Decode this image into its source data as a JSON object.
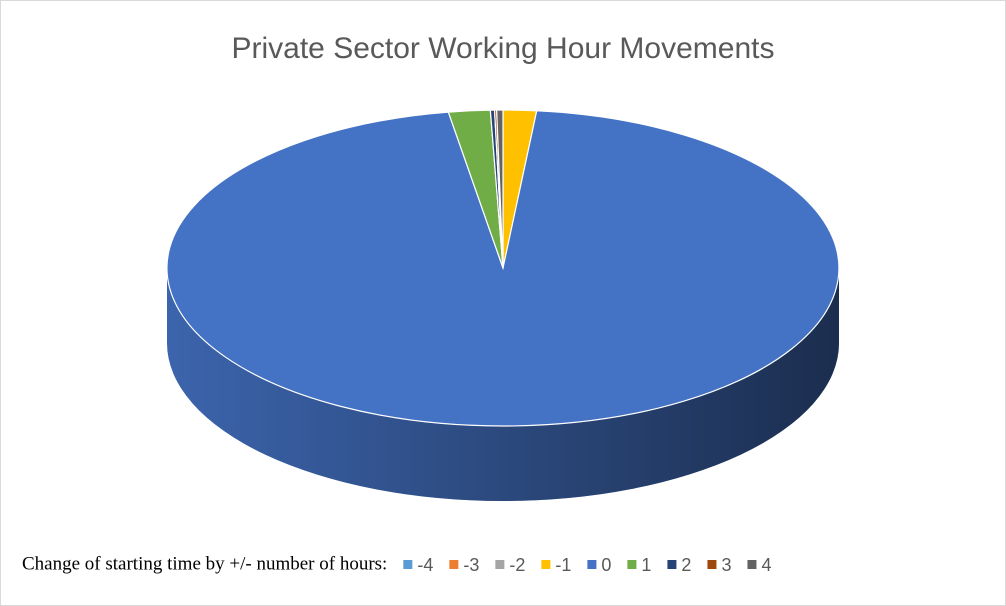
{
  "chart_data": {
    "type": "pie3d",
    "title": "Private Sector Working Hour Movements",
    "legend_title": "Change of starting time by +/-  number of hours:",
    "categories": [
      "-4",
      "-3",
      "-2",
      "-1",
      "0",
      "1",
      "2",
      "3",
      "4"
    ],
    "values": [
      0,
      0,
      0,
      1.6,
      95.8,
      2.0,
      0.2,
      0.1,
      0.3
    ],
    "colors": [
      "#5b9bd5",
      "#ed7d31",
      "#a5a5a5",
      "#ffc000",
      "#4472c4",
      "#70ad47",
      "#264478",
      "#9e480e",
      "#636363"
    ],
    "legend": "bottom"
  }
}
